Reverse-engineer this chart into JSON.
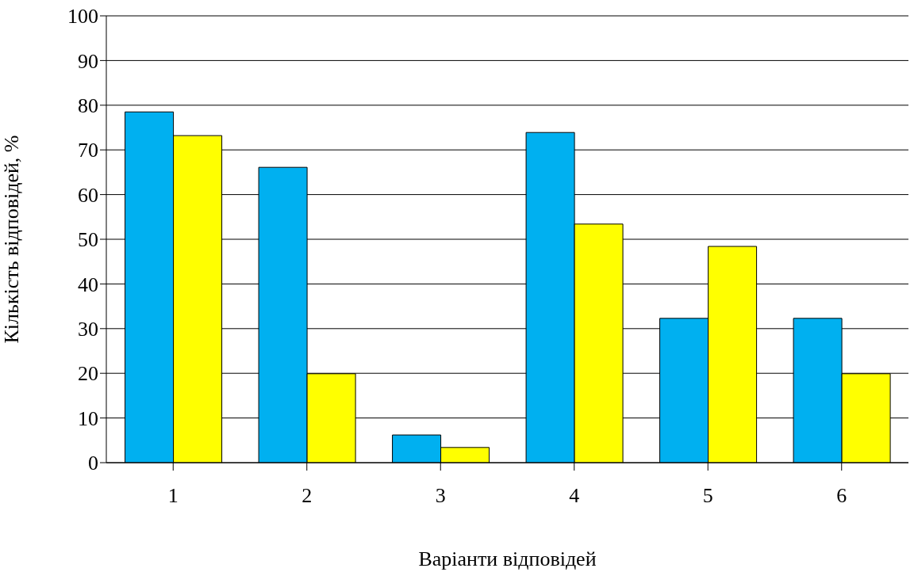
{
  "chart_data": {
    "type": "bar",
    "xlabel": "Варіанти відповідей",
    "ylabel": "Кількість відповідей, %",
    "categories": [
      "1",
      "2",
      "3",
      "4",
      "5",
      "6"
    ],
    "series": [
      {
        "color": "#00b0f0",
        "values": [
          78.5,
          66.1,
          6.2,
          73.9,
          32.3,
          32.3
        ]
      },
      {
        "color": "#ffff00",
        "values": [
          73.2,
          19.9,
          3.4,
          53.4,
          48.4,
          19.9
        ]
      }
    ],
    "ylim": [
      0,
      100
    ],
    "yticks": [
      0,
      10,
      20,
      30,
      40,
      50,
      60,
      70,
      80,
      90,
      100
    ],
    "grid": "y"
  }
}
